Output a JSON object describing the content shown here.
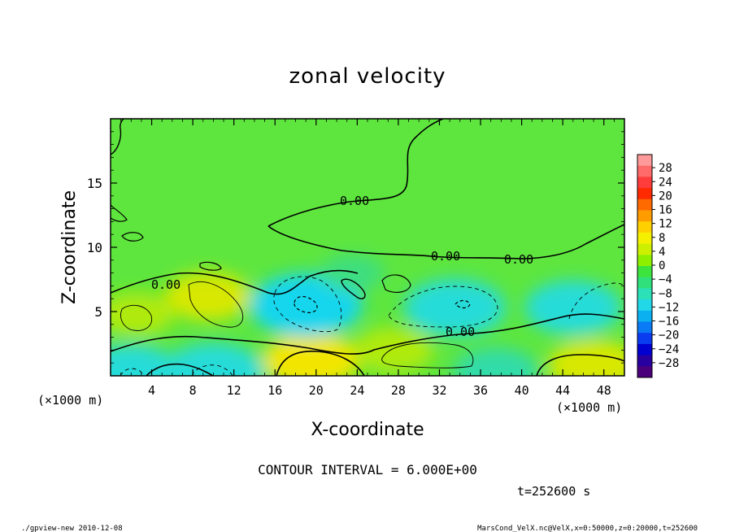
{
  "chart_data": {
    "type": "heatmap",
    "title": "zonal velocity",
    "xlabel": "X-coordinate",
    "ylabel": "Z-coordinate",
    "x_unit_label": "(×1000 m)",
    "y_unit_label": "(×1000 m)",
    "xlim": [
      0,
      50
    ],
    "ylim": [
      0,
      20
    ],
    "x_ticks": [
      4,
      8,
      12,
      16,
      20,
      24,
      28,
      32,
      36,
      40,
      44,
      48
    ],
    "y_ticks": [
      5,
      10,
      15
    ],
    "colorbar": {
      "labels": [
        "28",
        "24",
        "20",
        "16",
        "12",
        "8",
        "4",
        "0",
        "−4",
        "−8",
        "−12",
        "−16",
        "−20",
        "−24",
        "−28"
      ],
      "colors": [
        "#ff9a9a",
        "#ff6a6a",
        "#ff3c3c",
        "#ff2a00",
        "#ff6a00",
        "#ff9c00",
        "#ffd000",
        "#f5f000",
        "#cdf000",
        "#8ef000",
        "#3ee43e",
        "#30e07a",
        "#2ce0b8",
        "#22d8e8",
        "#0ab0f0",
        "#0a7af5",
        "#0a3cf0",
        "#0000d0",
        "#2800a0",
        "#4a007a"
      ]
    },
    "contour_interval_text": "CONTOUR INTERVAL = 6.000E+00",
    "contour_labels": [
      "0.00",
      "0.00",
      "0.00",
      "0.00",
      "0.00"
    ],
    "field_features": [
      {
        "kind": "max",
        "x": 19.5,
        "z": 1.2,
        "value": 8
      },
      {
        "kind": "max",
        "x": 47,
        "z": 0.8,
        "value": 7
      },
      {
        "kind": "max",
        "x": 9.5,
        "z": 6.2,
        "value": 6
      },
      {
        "kind": "max",
        "x": 27.5,
        "z": 2.0,
        "value": 5
      },
      {
        "kind": "max",
        "x": 2.5,
        "z": 4.8,
        "value": 4
      },
      {
        "kind": "min",
        "x": 19,
        "z": 5.5,
        "value": -11
      },
      {
        "kind": "min",
        "x": 33.5,
        "z": 5.3,
        "value": -9
      },
      {
        "kind": "min",
        "x": 45,
        "z": 5.3,
        "value": -8
      },
      {
        "kind": "min",
        "x": 10,
        "z": 0.3,
        "value": -9
      },
      {
        "kind": "min",
        "x": 2,
        "z": 0.3,
        "value": -8
      },
      {
        "kind": "min",
        "x": 37.5,
        "z": 0.3,
        "value": -6
      },
      {
        "kind": "min",
        "x": 23.5,
        "z": 8.0,
        "value": -2
      }
    ]
  },
  "time_label": "t=252600 s",
  "footer": {
    "left": "./gpview-new  2010-12-08",
    "right": "MarsCond_VelX.nc@VelX,x=0:50000,z=0:20000,t=252600"
  }
}
